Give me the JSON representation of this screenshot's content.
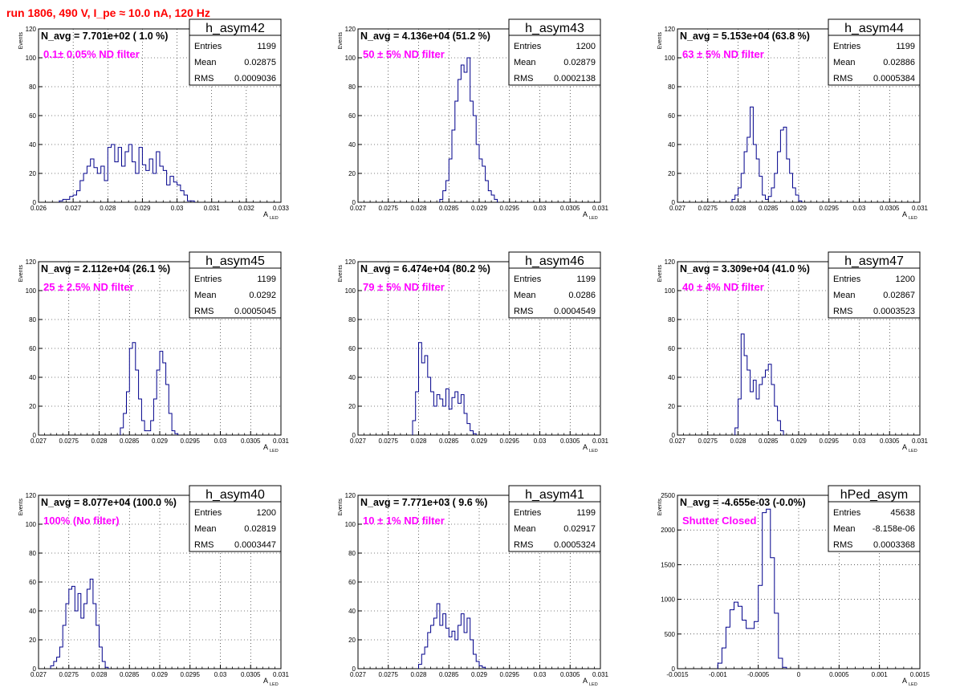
{
  "run_title": "run 1806,   490 V, I_pe ≈ 10.0 nA, 120 Hz",
  "stat_labels": {
    "entries": "Entries",
    "mean": "Mean",
    "rms": "RMS"
  },
  "y_axis_label": "Events",
  "x_axis_label": "A",
  "x_axis_sub": "LED",
  "colors": {
    "hist": "#00008b",
    "note": "#ff00ff",
    "title": "#ff0000",
    "grid": "#000000"
  },
  "chart_data": [
    {
      "type": "bar",
      "name": "h_asym42",
      "navg": "N_avg = 7.701e+02 ( 1.0 %)",
      "note": "0.1± 0.05% ND filter",
      "stats": {
        "entries": "1199",
        "mean": "0.02875",
        "rms": "0.0009036"
      },
      "xlim": [
        0.026,
        0.033
      ],
      "ylim": [
        0,
        120
      ],
      "xticks": [
        "0.026",
        "0.027",
        "0.028",
        "0.029",
        "0.03",
        "0.031",
        "0.032",
        "0.033"
      ],
      "yticks": [
        "0",
        "20",
        "40",
        "60",
        "80",
        "100",
        "120"
      ],
      "bin_start": 0.0266,
      "bin_width": 0.0001,
      "values": [
        1,
        2,
        2,
        4,
        5,
        8,
        15,
        20,
        25,
        30,
        24,
        20,
        25,
        15,
        38,
        40,
        28,
        38,
        25,
        35,
        40,
        28,
        20,
        38,
        26,
        22,
        30,
        20,
        35,
        25,
        22,
        12,
        18,
        14,
        12,
        8,
        5,
        1,
        1
      ]
    },
    {
      "type": "bar",
      "name": "h_asym43",
      "navg": "N_avg = 4.136e+04 (51.2 %)",
      "note": "50 ± 5% ND filter",
      "stats": {
        "entries": "1200",
        "mean": "0.02879",
        "rms": "0.0002138"
      },
      "xlim": [
        0.027,
        0.031
      ],
      "ylim": [
        0,
        120
      ],
      "xticks": [
        "0.027",
        "0.0275",
        "0.028",
        "0.0285",
        "0.029",
        "0.0295",
        "0.03",
        "0.0305",
        "0.031"
      ],
      "yticks": [
        "0",
        "20",
        "40",
        "60",
        "80",
        "100",
        "120"
      ],
      "bin_start": 0.02835,
      "bin_width": 5e-05,
      "values": [
        2,
        8,
        15,
        30,
        50,
        70,
        85,
        95,
        90,
        100,
        70,
        60,
        40,
        30,
        25,
        15,
        8,
        5,
        2
      ]
    },
    {
      "type": "bar",
      "name": "h_asym44",
      "navg": "N_avg = 5.153e+04 (63.8 %)",
      "note": "63 ± 5% ND filter",
      "stats": {
        "entries": "1199",
        "mean": "0.02886",
        "rms": "0.0005384"
      },
      "xlim": [
        0.027,
        0.031
      ],
      "ylim": [
        0,
        120
      ],
      "xticks": [
        "0.027",
        "0.0275",
        "0.028",
        "0.0285",
        "0.029",
        "0.0295",
        "0.03",
        "0.0305",
        "0.031"
      ],
      "yticks": [
        "0",
        "20",
        "40",
        "60",
        "80",
        "100",
        "120"
      ],
      "bin_start": 0.0279,
      "bin_width": 5e-05,
      "values": [
        2,
        5,
        10,
        20,
        35,
        45,
        66,
        40,
        30,
        18,
        5,
        2,
        4,
        10,
        20,
        35,
        50,
        52,
        30,
        20,
        10,
        5,
        1
      ]
    },
    {
      "type": "bar",
      "name": "h_asym45",
      "navg": "N_avg = 2.112e+04 (26.1 %)",
      "note": "25 ± 2.5% ND filter",
      "stats": {
        "entries": "1199",
        "mean": "0.0292",
        "rms": "0.0005045"
      },
      "xlim": [
        0.027,
        0.031
      ],
      "ylim": [
        0,
        120
      ],
      "xticks": [
        "0.027",
        "0.0275",
        "0.028",
        "0.0285",
        "0.029",
        "0.0295",
        "0.03",
        "0.0305",
        "0.031"
      ],
      "yticks": [
        "0",
        "20",
        "40",
        "60",
        "80",
        "100",
        "120"
      ],
      "bin_start": 0.02835,
      "bin_width": 5e-05,
      "values": [
        5,
        15,
        30,
        60,
        64,
        45,
        25,
        10,
        3,
        3,
        10,
        25,
        45,
        58,
        50,
        35,
        15,
        3,
        1
      ]
    },
    {
      "type": "bar",
      "name": "h_asym46",
      "navg": "N_avg = 6.474e+04 (80.2 %)",
      "note": "79 ± 5% ND filter",
      "stats": {
        "entries": "1199",
        "mean": "0.0286",
        "rms": "0.0004549"
      },
      "xlim": [
        0.027,
        0.031
      ],
      "ylim": [
        0,
        120
      ],
      "xticks": [
        "0.027",
        "0.0275",
        "0.028",
        "0.0285",
        "0.029",
        "0.0295",
        "0.03",
        "0.0305",
        "0.031"
      ],
      "yticks": [
        "0",
        "20",
        "40",
        "60",
        "80",
        "100",
        "120"
      ],
      "bin_start": 0.0279,
      "bin_width": 5e-05,
      "values": [
        10,
        30,
        64,
        50,
        55,
        40,
        30,
        20,
        28,
        25,
        20,
        32,
        18,
        26,
        30,
        22,
        28,
        15,
        8,
        3,
        1
      ]
    },
    {
      "type": "bar",
      "name": "h_asym47",
      "navg": "N_avg = 3.309e+04 (41.0 %)",
      "note": "40 ± 4% ND filter",
      "stats": {
        "entries": "1200",
        "mean": "0.02867",
        "rms": "0.0003523"
      },
      "xlim": [
        0.027,
        0.031
      ],
      "ylim": [
        0,
        120
      ],
      "xticks": [
        "0.027",
        "0.0275",
        "0.028",
        "0.0285",
        "0.029",
        "0.0295",
        "0.03",
        "0.0305",
        "0.031"
      ],
      "yticks": [
        "0",
        "20",
        "40",
        "60",
        "80",
        "100",
        "120"
      ],
      "bin_start": 0.02795,
      "bin_width": 5e-05,
      "values": [
        5,
        25,
        70,
        55,
        45,
        30,
        38,
        25,
        35,
        40,
        45,
        49,
        35,
        20,
        10,
        3
      ]
    },
    {
      "type": "bar",
      "name": "h_asym40",
      "navg": "N_avg = 8.077e+04 (100.0 %)",
      "note": "100% (No filter)",
      "stats": {
        "entries": "1200",
        "mean": "0.02819",
        "rms": "0.0003447"
      },
      "xlim": [
        0.027,
        0.031
      ],
      "ylim": [
        0,
        120
      ],
      "xticks": [
        "0.027",
        "0.0275",
        "0.028",
        "0.0285",
        "0.029",
        "0.0295",
        "0.03",
        "0.0305",
        "0.031"
      ],
      "yticks": [
        "0",
        "20",
        "40",
        "60",
        "80",
        "100",
        "120"
      ],
      "bin_start": 0.0272,
      "bin_width": 5e-05,
      "values": [
        2,
        5,
        8,
        15,
        30,
        45,
        55,
        57,
        40,
        52,
        35,
        45,
        55,
        62,
        45,
        30,
        15,
        5,
        1
      ]
    },
    {
      "type": "bar",
      "name": "h_asym41",
      "navg": "N_avg = 7.771e+03 ( 9.6 %)",
      "note": "10 ± 1% ND filter",
      "stats": {
        "entries": "1199",
        "mean": "0.02917",
        "rms": "0.0005324"
      },
      "xlim": [
        0.027,
        0.031
      ],
      "ylim": [
        0,
        120
      ],
      "xticks": [
        "0.027",
        "0.0275",
        "0.028",
        "0.0285",
        "0.029",
        "0.0295",
        "0.03",
        "0.0305",
        "0.031"
      ],
      "yticks": [
        "0",
        "20",
        "40",
        "60",
        "80",
        "100",
        "120"
      ],
      "bin_start": 0.028,
      "bin_width": 5e-05,
      "values": [
        3,
        10,
        15,
        25,
        30,
        35,
        45,
        30,
        38,
        28,
        22,
        26,
        20,
        30,
        38,
        25,
        35,
        20,
        10,
        5,
        2,
        1
      ]
    },
    {
      "type": "bar",
      "name": "hPed_asym",
      "navg": "N_avg = -4.655e-03 (-0.0%)",
      "note": "Shutter Closed",
      "stats": {
        "entries": "45638",
        "mean": "-8.158e-06",
        "rms": "0.0003368"
      },
      "xlim": [
        -0.0015,
        0.0015
      ],
      "ylim": [
        0,
        2500
      ],
      "xticks": [
        "-0.0015",
        "-0.001",
        "-0.0005",
        "0",
        "0.0005",
        "0.001",
        "0.0015"
      ],
      "yticks": [
        "0",
        "500",
        "1000",
        "1500",
        "2000",
        "2500"
      ],
      "bin_start": -0.001,
      "bin_width": 5e-05,
      "values": [
        80,
        300,
        600,
        850,
        960,
        900,
        700,
        580,
        580,
        680,
        1200,
        2250,
        2300,
        1600,
        800,
        150,
        20
      ]
    }
  ]
}
